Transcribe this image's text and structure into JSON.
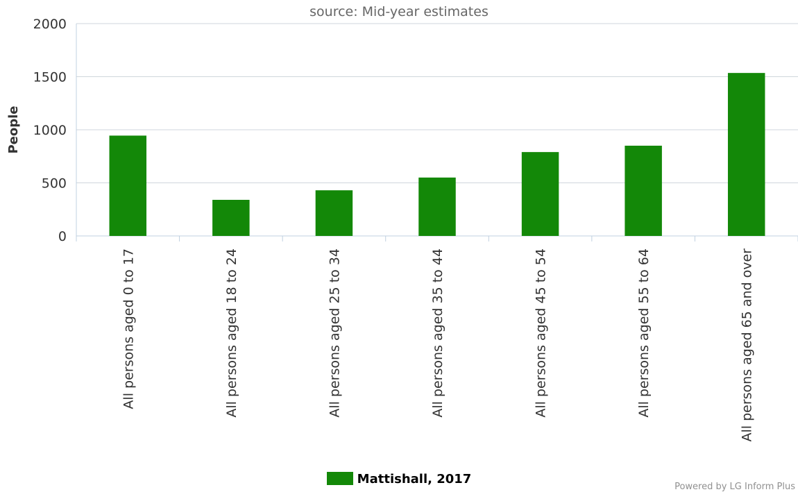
{
  "chart_data": {
    "type": "bar",
    "subtitle": "source: Mid-year estimates",
    "ylabel": "People",
    "xlabel": "",
    "ylim": [
      0,
      2000
    ],
    "yticks": [
      0,
      500,
      1000,
      1500,
      2000
    ],
    "grid": true,
    "legend_position": "bottom-center",
    "categories": [
      "All persons aged 0 to 17",
      "All persons aged 18 to 24",
      "All persons aged 25 to 34",
      "All persons aged 35 to 44",
      "All persons aged 45 to 54",
      "All persons aged 55 to 64",
      "All persons aged 65 and over"
    ],
    "series": [
      {
        "name": "Mattishall, 2017",
        "color": "#138808",
        "values": [
          945,
          340,
          430,
          550,
          790,
          850,
          1535
        ]
      }
    ]
  },
  "credits": "Powered by LG Inform Plus"
}
